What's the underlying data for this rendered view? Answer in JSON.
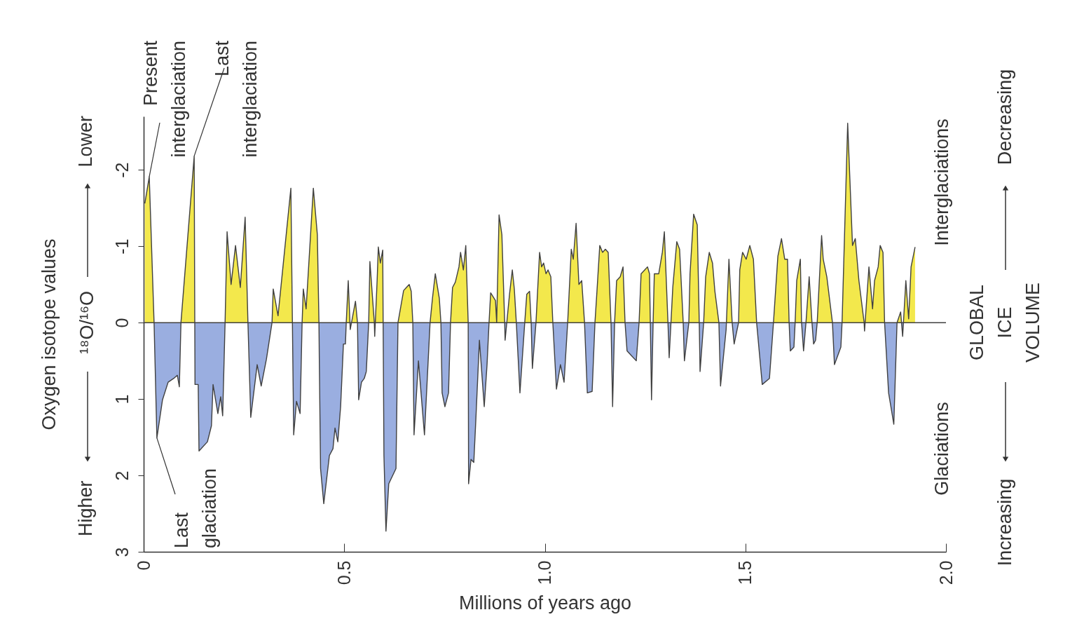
{
  "chart_data": {
    "type": "area",
    "xlabel": "Millions of years ago",
    "ylabel": "Oxygen isotope values",
    "xlim": [
      0,
      2
    ],
    "xticks": [
      0,
      0.5,
      {
        "value": 1,
        "label": "1.0"
      },
      1.5,
      {
        "value": 2,
        "label": "2.0"
      }
    ],
    "ylim": [
      3,
      -2.7
    ],
    "yticks": [
      3,
      2,
      1,
      0,
      -1,
      -2
    ],
    "colors": [
      "#f3e84c",
      "#9aaee0"
    ],
    "ref_lines": [
      {
        "axis": "y",
        "value": 0,
        "color": "#404040"
      }
    ],
    "x": [
      0.003,
      0.014,
      0.026,
      0.033,
      0.047,
      0.061,
      0.075,
      0.084,
      0.089,
      0.093,
      0.126,
      0.128,
      0.136,
      0.138,
      0.159,
      0.169,
      0.173,
      0.185,
      0.192,
      0.197,
      0.203,
      0.208,
      0.218,
      0.229,
      0.241,
      0.253,
      0.26,
      0.267,
      0.283,
      0.293,
      0.306,
      0.32,
      0.323,
      0.335,
      0.367,
      0.374,
      0.381,
      0.39,
      0.395,
      0.398,
      0.405,
      0.423,
      0.433,
      0.437,
      0.438,
      0.441,
      0.449,
      0.463,
      0.472,
      0.477,
      0.484,
      0.491,
      0.498,
      0.503,
      0.505,
      0.51,
      0.515,
      0.528,
      0.533,
      0.536,
      0.543,
      0.55,
      0.555,
      0.561,
      0.564,
      0.575,
      0.576,
      0.582,
      0.585,
      0.59,
      0.596,
      0.597,
      0.599,
      0.604,
      0.611,
      0.629,
      0.634,
      0.648,
      0.655,
      0.662,
      0.667,
      0.671,
      0.674,
      0.685,
      0.7,
      0.714,
      0.72,
      0.727,
      0.737,
      0.741,
      0.744,
      0.751,
      0.76,
      0.765,
      0.77,
      0.777,
      0.786,
      0.79,
      0.797,
      0.803,
      0.809,
      0.81,
      0.816,
      0.823,
      0.828,
      0.837,
      0.849,
      0.856,
      0.861,
      0.865,
      0.877,
      0.88,
      0.886,
      0.893,
      0.9,
      0.901,
      0.912,
      0.919,
      0.924,
      0.929,
      0.938,
      0.95,
      0.955,
      0.962,
      0.966,
      0.969,
      0.978,
      0.987,
      0.992,
      0.997,
      1.003,
      1.008,
      1.015,
      1.02,
      1.029,
      1.039,
      1.048,
      1.057,
      1.066,
      1.071,
      1.078,
      1.085,
      1.092,
      1.099,
      1.106,
      1.118,
      1.125,
      1.13,
      1.137,
      1.144,
      1.151,
      1.158,
      1.165,
      1.169,
      1.174,
      1.179,
      1.188,
      1.195,
      1.2,
      1.205,
      1.228,
      1.235,
      1.24,
      1.249,
      1.256,
      1.261,
      1.263,
      1.266,
      1.27,
      1.273,
      1.284,
      1.293,
      1.298,
      1.307,
      1.31,
      1.319,
      1.329,
      1.336,
      1.345,
      1.348,
      1.359,
      1.362,
      1.371,
      1.38,
      1.385,
      1.387,
      1.396,
      1.401,
      1.41,
      1.418,
      1.424,
      1.434,
      1.438,
      1.452,
      1.459,
      1.467,
      1.472,
      1.483,
      1.486,
      1.493,
      1.502,
      1.511,
      1.52,
      1.528,
      1.542,
      1.56,
      1.57,
      1.581,
      1.59,
      1.598,
      1.605,
      1.609,
      1.612,
      1.621,
      1.624,
      1.628,
      1.637,
      1.64,
      1.645,
      1.651,
      1.659,
      1.666,
      1.67,
      1.675,
      1.679,
      1.69,
      1.694,
      1.703,
      1.717,
      1.722,
      1.738,
      1.741,
      1.755,
      1.767,
      1.774,
      1.783,
      1.796,
      1.797,
      1.808,
      1.817,
      1.822,
      1.831,
      1.836,
      1.843,
      1.847,
      1.857,
      1.87,
      1.878,
      1.887,
      1.892,
      1.9,
      1.907,
      1.913,
      1.923
    ],
    "series": [
      {
        "color": "#404040",
        "values": [
          -1.56,
          -1.91,
          0,
          1.51,
          1.01,
          0.78,
          0.73,
          0.69,
          0.84,
          0,
          -2.18,
          0.81,
          0.81,
          1.68,
          1.56,
          1.35,
          0.81,
          1.19,
          0.97,
          1.22,
          0,
          -1.19,
          -0.5,
          -1.01,
          -0.46,
          -1.38,
          0,
          1.24,
          0.55,
          0.83,
          0.48,
          0,
          -0.44,
          -0.09,
          -1.76,
          1.47,
          1.03,
          1.19,
          0,
          -0.44,
          -0.18,
          -1.76,
          -1.15,
          0,
          0.55,
          1.91,
          2.37,
          1.74,
          1.65,
          1.38,
          1.56,
          1.1,
          0.28,
          0.28,
          0,
          -0.55,
          0.09,
          -0.28,
          0,
          1.01,
          0.78,
          0.73,
          0.64,
          0,
          -0.8,
          0,
          0.18,
          -0.55,
          -0.99,
          -0.78,
          -0.95,
          0,
          1.74,
          2.73,
          2.11,
          1.91,
          0,
          -0.42,
          -0.46,
          -0.5,
          -0.41,
          0,
          1.47,
          0.5,
          1.47,
          0,
          -0.32,
          -0.64,
          -0.32,
          0,
          0.92,
          1.1,
          0.92,
          0,
          -0.46,
          -0.53,
          -0.73,
          -0.92,
          -0.69,
          -1.01,
          0,
          2.11,
          1.79,
          1.83,
          1.28,
          0.23,
          1.1,
          0.55,
          0,
          -0.39,
          -0.29,
          0,
          -1.41,
          -1.15,
          0,
          0.23,
          -0.37,
          -0.69,
          -0.44,
          0,
          0.92,
          0,
          -0.37,
          -0.41,
          0,
          0.6,
          0,
          -0.92,
          -0.73,
          -0.78,
          -0.64,
          -0.69,
          -0.6,
          0,
          0.87,
          0.55,
          0.78,
          0,
          -0.96,
          -0.83,
          -1.3,
          -0.5,
          -0.55,
          0,
          0.92,
          0.9,
          0,
          -0.41,
          -1.01,
          -0.92,
          -0.96,
          -0.92,
          0,
          1.1,
          0,
          -0.55,
          -0.6,
          -0.73,
          0,
          0.37,
          0.5,
          0,
          -0.64,
          -0.69,
          -0.73,
          -0.64,
          0,
          1.01,
          0,
          -0.64,
          -0.64,
          -0.92,
          -1.19,
          0,
          0.46,
          -0.46,
          -1.06,
          -0.96,
          0,
          0.5,
          0,
          -0.64,
          -1.42,
          -1.28,
          0,
          0.64,
          0,
          -0.6,
          -0.92,
          -0.78,
          -0.41,
          0,
          0.83,
          0.09,
          -0.83,
          0,
          0.28,
          0,
          -0.69,
          -0.92,
          -0.83,
          -1.01,
          -0.83,
          0,
          0.81,
          0.73,
          0,
          -0.87,
          -1.1,
          -0.83,
          -0.83,
          0,
          0.37,
          0.32,
          0,
          -0.55,
          -0.83,
          0,
          0.37,
          0,
          -0.6,
          0,
          0.28,
          0.23,
          0,
          -1.14,
          -0.83,
          -0.6,
          0,
          0.55,
          0.32,
          0,
          -2.61,
          -1.01,
          -1.1,
          -0.55,
          0,
          0.11,
          -0.73,
          -0.18,
          -0.55,
          -0.73,
          -1.01,
          -0.92,
          0,
          0.92,
          1.33,
          0,
          -0.14,
          0.18,
          -0.55,
          -0.05,
          -0.73,
          -0.99
        ]
      }
    ],
    "annotations": [
      {
        "text": "Present interglaciation",
        "x": 0.014,
        "y": -1.91
      },
      {
        "text": "Last interglaciation",
        "x": 0.126,
        "y": -2.18
      },
      {
        "text": "Last glaciation",
        "x": 0.033,
        "y": 1.51
      },
      "Higher",
      "¹⁸O/¹⁶O",
      "Lower",
      "Interglaciations",
      "Glaciations",
      "GLOBAL ICE VOLUME",
      "Decreasing",
      "Increasing"
    ]
  }
}
